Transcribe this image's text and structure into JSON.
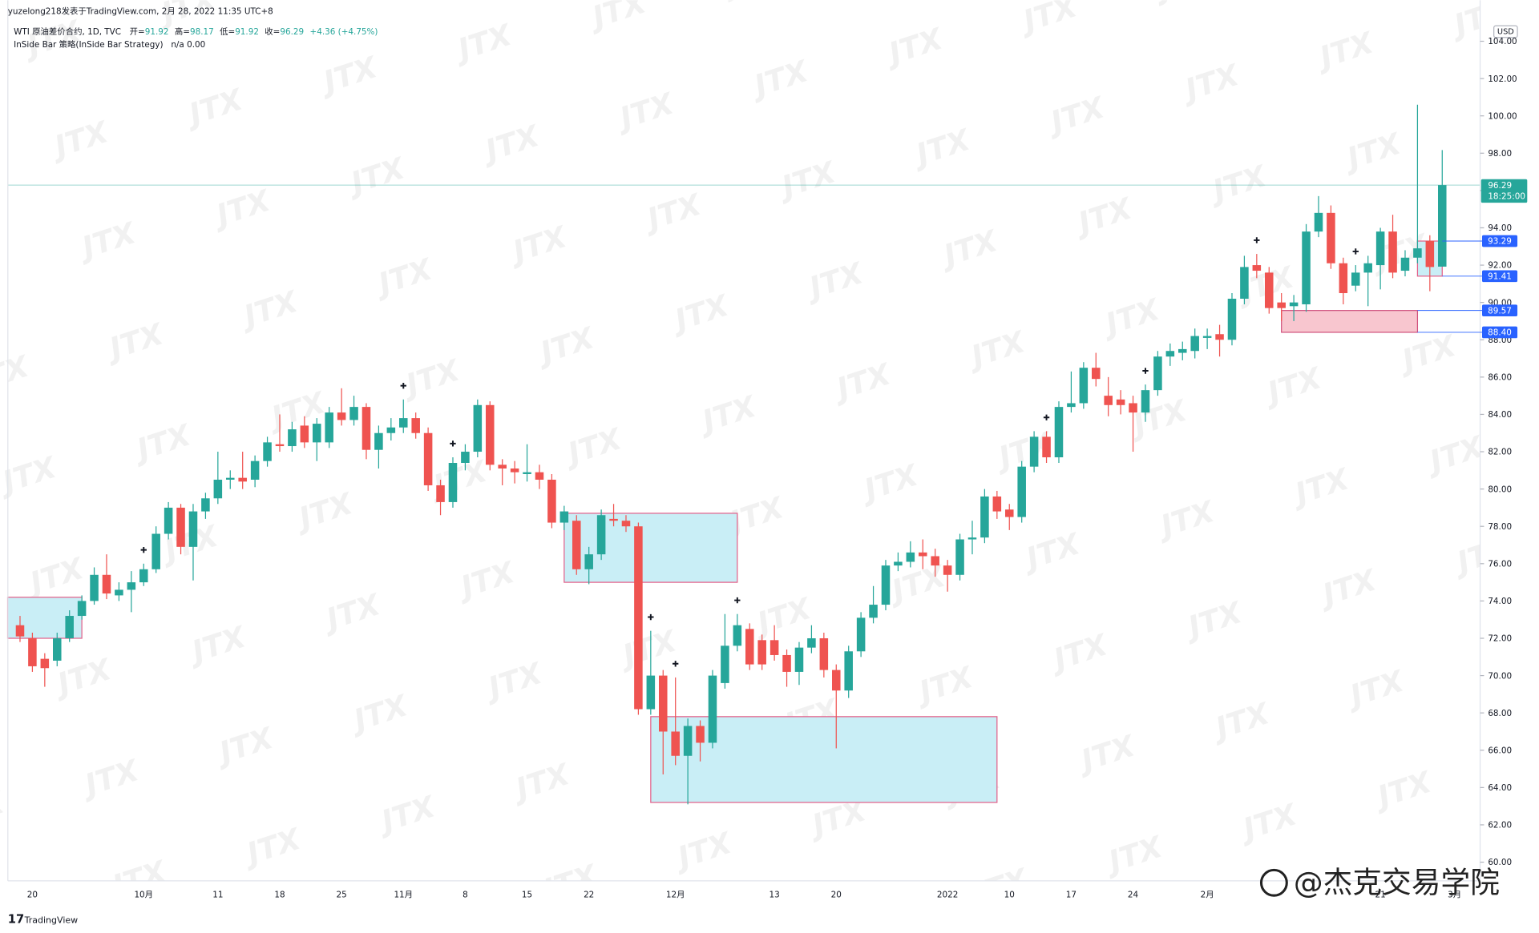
{
  "chart_data": {
    "type": "candlestick",
    "header": {
      "author_line": "yuzelong218发表于TradingView.com, 2月 28, 2022 11:35 UTC+8",
      "symbol": "WTI 原油差价合约, 1D, TVC",
      "ohlc": [
        {
          "name": "开=",
          "value": "91.92"
        },
        {
          "name": "高=",
          "value": "98.17"
        },
        {
          "name": "低=",
          "value": "91.92"
        },
        {
          "name": "收=",
          "value": "96.29"
        }
      ],
      "change": "+4.36 (+4.75%)",
      "indicator": "InSide Bar 策略(InSide Bar Strategy)",
      "indicator_values": "n/a  0.00"
    },
    "currency": "USD",
    "brand": "TradingView",
    "watermark": "JTX",
    "corner_watermark": "@杰克交易学院",
    "up_color": "#26a69a",
    "down_color": "#ef5350",
    "categories": [
      null,
      "20",
      null,
      null,
      null,
      null,
      null,
      null,
      null,
      null,
      "10月",
      null,
      null,
      null,
      null,
      null,
      "11",
      null,
      null,
      null,
      null,
      "18",
      null,
      null,
      null,
      null,
      "25",
      null,
      null,
      null,
      null,
      "11月",
      null,
      null,
      null,
      null,
      "8",
      null,
      null,
      null,
      null,
      "15",
      null,
      null,
      null,
      null,
      "22",
      null,
      null,
      null,
      null,
      null,
      null,
      "12月",
      null,
      null,
      null,
      null,
      null,
      null,
      null,
      "13",
      null,
      null,
      null,
      null,
      "20",
      null,
      null,
      null,
      null,
      null,
      null,
      null,
      null,
      "2022",
      null,
      null,
      null,
      null,
      "10",
      null,
      null,
      null,
      null,
      "17",
      null,
      null,
      null,
      null,
      "24",
      null,
      null,
      null,
      null,
      null,
      "2月",
      null,
      null,
      null,
      null,
      null,
      null,
      null,
      null,
      null,
      null,
      null,
      null,
      null,
      "21",
      null,
      null,
      null,
      null,
      null
    ],
    "x_labels_ahead": [
      "3月"
    ],
    "open": [
      72.7,
      72.0,
      70.9,
      70.8,
      72.0,
      73.2,
      74.0,
      75.4,
      74.3,
      74.6,
      75.0,
      75.7,
      77.6,
      79.0,
      76.9,
      78.8,
      79.5,
      80.5,
      80.6,
      80.5,
      81.5,
      82.4,
      82.3,
      83.4,
      82.5,
      82.5,
      84.1,
      83.7,
      84.4,
      82.1,
      83.0,
      83.3,
      83.8,
      83.0,
      80.2,
      79.3,
      81.4,
      82.0,
      84.5,
      81.3,
      81.1,
      80.8,
      80.9,
      80.5,
      78.2,
      78.3,
      75.7,
      76.5,
      78.4,
      78.3,
      78.0,
      68.2,
      70.0,
      67.0,
      65.7,
      67.3,
      66.4,
      69.6,
      71.6,
      72.5,
      71.9,
      71.9,
      71.1,
      70.2,
      71.5,
      72.0,
      70.3,
      69.2,
      71.3,
      73.1,
      73.8,
      75.9,
      76.1,
      76.6,
      76.4,
      75.9,
      75.4,
      77.3,
      77.4,
      79.6,
      78.9,
      78.5,
      81.2,
      82.8,
      81.7,
      84.4,
      84.6,
      86.5,
      85.0,
      84.8,
      84.6,
      84.1,
      85.3,
      87.1,
      87.3,
      87.4,
      88.1,
      88.3,
      88.0,
      90.2,
      92.0,
      91.6,
      90.0,
      89.8,
      89.9,
      93.8,
      94.8,
      92.1,
      90.9,
      91.6,
      92.0,
      93.8,
      91.7,
      92.4,
      93.3,
      91.92
    ],
    "high": [
      73.2,
      72.3,
      71.2,
      72.3,
      73.5,
      74.3,
      75.8,
      76.5,
      75.0,
      75.6,
      76.0,
      78.0,
      79.3,
      79.2,
      79.2,
      79.8,
      82.0,
      81.0,
      82.0,
      81.8,
      82.8,
      84.0,
      83.6,
      83.9,
      83.8,
      84.4,
      85.4,
      85.0,
      84.6,
      83.4,
      83.8,
      84.8,
      84.1,
      83.3,
      80.5,
      81.7,
      82.4,
      84.8,
      84.7,
      81.6,
      81.5,
      82.4,
      81.3,
      80.8,
      79.1,
      78.6,
      76.9,
      78.9,
      79.2,
      78.6,
      78.2,
      72.4,
      70.3,
      69.9,
      67.7,
      67.6,
      70.3,
      73.3,
      73.3,
      72.8,
      72.2,
      72.7,
      71.4,
      71.8,
      72.7,
      72.3,
      70.6,
      71.6,
      73.4,
      74.8,
      76.2,
      76.6,
      77.2,
      77.3,
      76.8,
      76.2,
      77.6,
      78.3,
      80.0,
      79.9,
      79.2,
      81.5,
      83.1,
      83.1,
      84.7,
      86.3,
      86.8,
      87.3,
      86.0,
      85.3,
      85.0,
      85.6,
      87.4,
      87.8,
      87.9,
      88.6,
      88.6,
      88.8,
      90.5,
      92.5,
      92.6,
      91.9,
      90.5,
      90.4,
      94.2,
      95.7,
      95.2,
      92.4,
      92.0,
      92.5,
      94.0,
      94.7,
      92.8,
      100.6,
      93.6,
      98.17
    ],
    "low": [
      71.8,
      70.2,
      69.4,
      70.5,
      71.8,
      73.0,
      73.8,
      74.1,
      74.0,
      73.4,
      74.8,
      75.5,
      77.3,
      76.5,
      75.1,
      78.4,
      79.2,
      80.0,
      80.0,
      80.1,
      81.2,
      82.0,
      82.0,
      82.2,
      81.5,
      82.2,
      83.4,
      83.4,
      81.6,
      81.1,
      82.6,
      83.0,
      82.7,
      79.9,
      78.6,
      79.0,
      81.0,
      81.7,
      81.0,
      80.2,
      80.3,
      80.4,
      80.0,
      77.9,
      77.8,
      75.4,
      74.9,
      76.2,
      78.0,
      77.7,
      67.9,
      67.9,
      64.7,
      65.2,
      63.1,
      65.4,
      66.1,
      69.3,
      71.3,
      70.3,
      70.3,
      70.8,
      69.4,
      69.5,
      71.2,
      69.9,
      66.1,
      68.8,
      71.0,
      72.8,
      73.5,
      75.6,
      75.8,
      75.7,
      75.3,
      74.5,
      75.1,
      76.5,
      77.1,
      78.4,
      77.8,
      78.2,
      80.9,
      81.4,
      81.4,
      84.1,
      84.3,
      85.5,
      83.9,
      84.0,
      82.0,
      83.6,
      85.0,
      86.6,
      86.9,
      87.0,
      87.5,
      87.1,
      87.7,
      89.9,
      91.3,
      89.4,
      89.0,
      89.0,
      89.5,
      93.5,
      91.8,
      89.9,
      90.6,
      89.8,
      90.7,
      91.3,
      91.4,
      92.1,
      90.6,
      91.92
    ],
    "close": [
      72.1,
      70.5,
      70.4,
      72.0,
      73.2,
      74.0,
      75.4,
      74.4,
      74.6,
      75.0,
      75.7,
      77.6,
      79.0,
      76.9,
      78.8,
      79.5,
      80.5,
      80.6,
      80.4,
      81.5,
      82.5,
      82.3,
      83.2,
      82.5,
      83.5,
      84.1,
      83.7,
      84.4,
      82.1,
      83.0,
      83.3,
      83.8,
      83.0,
      80.2,
      79.3,
      81.4,
      82.0,
      84.5,
      81.3,
      81.1,
      80.9,
      80.9,
      80.5,
      78.2,
      78.8,
      75.7,
      76.5,
      78.6,
      78.3,
      78.0,
      68.2,
      70.0,
      67.0,
      65.7,
      67.3,
      66.4,
      70.0,
      71.6,
      72.7,
      70.6,
      70.6,
      71.1,
      70.2,
      71.5,
      72.0,
      70.3,
      69.2,
      71.3,
      73.1,
      73.8,
      75.9,
      76.1,
      76.6,
      76.4,
      75.9,
      75.4,
      77.3,
      77.4,
      79.6,
      78.8,
      78.5,
      81.2,
      82.8,
      81.7,
      84.4,
      84.6,
      86.5,
      85.9,
      84.5,
      84.5,
      84.1,
      85.3,
      87.1,
      87.4,
      87.5,
      88.2,
      88.2,
      88.0,
      90.2,
      91.9,
      91.7,
      89.7,
      89.7,
      90.0,
      93.8,
      94.8,
      92.1,
      90.5,
      91.6,
      92.1,
      93.8,
      91.6,
      92.4,
      92.9,
      91.9,
      96.29
    ],
    "signals": [
      10,
      31,
      35,
      51,
      53,
      58,
      83,
      91,
      100,
      108
    ],
    "last_price": {
      "value": 96.29,
      "label": "96.29",
      "countdown": "18:25:00",
      "color": "#26a69a"
    },
    "zones": [
      {
        "start": -1,
        "end": 5,
        "top": 74.2,
        "bottom": 72.0,
        "fill": "#c9eef6",
        "stroke": "#e2608a"
      },
      {
        "start": 44,
        "end": 58,
        "top": 78.7,
        "bottom": 75.0,
        "fill": "#c9eef6",
        "stroke": "#e2608a"
      },
      {
        "start": 51,
        "end": 79,
        "top": 67.8,
        "bottom": 63.2,
        "fill": "#c9eef6",
        "stroke": "#e2608a"
      },
      {
        "start": 102,
        "end": 113,
        "top": 89.57,
        "bottom": 88.4,
        "fill": "#f8c6cf",
        "stroke": "#d0507c",
        "labels": [
          "89.57",
          "88.40"
        ],
        "label_color": "#2962ff"
      },
      {
        "start": 113,
        "end": 115,
        "top": 93.29,
        "bottom": 91.41,
        "fill": "#c9eef6",
        "stroke": "#e2608a",
        "labels": [
          "93.29",
          "91.41"
        ],
        "label_color": "#2962ff"
      }
    ],
    "ylim": [
      59,
      106.2
    ],
    "yticks": [
      {
        "value": 60,
        "label": "60.00"
      },
      {
        "value": 62,
        "label": "62.00"
      },
      {
        "value": 64,
        "label": "64.00"
      },
      {
        "value": 66,
        "label": "66.00"
      },
      {
        "value": 68,
        "label": "68.00"
      },
      {
        "value": 70,
        "label": "70.00"
      },
      {
        "value": 72,
        "label": "72.00"
      },
      {
        "value": 74,
        "label": "74.00"
      },
      {
        "value": 76,
        "label": "76.00"
      },
      {
        "value": 78,
        "label": "78.00"
      },
      {
        "value": 80,
        "label": "80.00"
      },
      {
        "value": 82,
        "label": "82.00"
      },
      {
        "value": 84,
        "label": "84.00"
      },
      {
        "value": 86,
        "label": "86.00"
      },
      {
        "value": 88,
        "label": "88.00"
      },
      {
        "value": 90,
        "label": "90.00"
      },
      {
        "value": 92,
        "label": "92.00"
      },
      {
        "value": 94,
        "label": "94.00"
      },
      {
        "value": 96,
        "label": "96.00"
      },
      {
        "value": 98,
        "label": "98.00"
      },
      {
        "value": 100,
        "label": "100.00"
      },
      {
        "value": 102,
        "label": "102.00"
      },
      {
        "value": 104,
        "label": "104.00"
      }
    ],
    "grid": false
  }
}
